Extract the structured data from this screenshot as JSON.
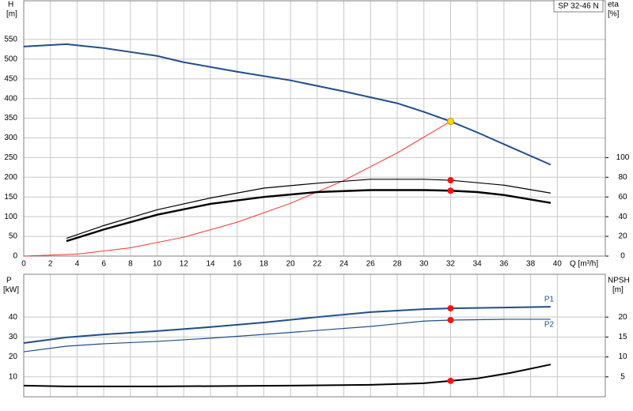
{
  "chart_data": [
    {
      "type": "line",
      "title": "SP 32-46 N",
      "ylabel": "H",
      "yunit": "[m]",
      "y2label": "eta",
      "y2unit": "[%]",
      "xlabel": "Q [m³/h]",
      "xlim": [
        0,
        43.6
      ],
      "xticks": [
        0,
        2,
        4,
        6,
        8,
        10,
        12,
        14,
        16,
        18,
        20,
        22,
        24,
        26,
        28,
        30,
        32,
        34,
        36,
        38,
        40
      ],
      "ylim": [
        0,
        648
      ],
      "yticks": [
        0,
        50,
        100,
        150,
        200,
        250,
        300,
        350,
        400,
        450,
        500,
        550
      ],
      "y2lim": [
        0,
        259.2
      ],
      "y2ticks": [
        0,
        20,
        40,
        60,
        80,
        100
      ],
      "grid": true,
      "xtick_labels": true,
      "series": [
        {
          "color": "#1f4e8c",
          "line_width": 2,
          "x": [
            0,
            3.2,
            6,
            10,
            12,
            16,
            20,
            24,
            28,
            30,
            32,
            34,
            36,
            39.5
          ],
          "values": [
            532,
            538,
            528,
            508,
            492,
            468,
            446,
            418,
            388,
            366,
            342,
            314,
            284,
            232
          ]
        },
        {
          "color": "#ff3030",
          "line_width": 1,
          "x": [
            0,
            4,
            8,
            12,
            16,
            20,
            24,
            28,
            32
          ],
          "values": [
            0,
            5,
            21,
            48,
            86,
            134,
            192,
            262,
            342
          ]
        },
        {
          "color": "#000000",
          "line_width": 1.2,
          "axis": "y2",
          "x": [
            3.2,
            6,
            10,
            14,
            18,
            22,
            26,
            30,
            32,
            36,
            39.5
          ],
          "values": [
            18,
            31,
            47,
            59,
            69,
            74,
            78,
            78,
            77,
            72,
            64
          ]
        },
        {
          "color": "#000000",
          "line_width": 2.4,
          "axis": "y2",
          "x": [
            3.2,
            6,
            10,
            14,
            18,
            22,
            26,
            30,
            32,
            34,
            36,
            39.5
          ],
          "values": [
            15.2,
            27,
            42,
            53,
            60,
            65,
            67,
            67,
            66.4,
            65,
            62,
            54
          ]
        }
      ],
      "duty_points": [
        {
          "x": 32,
          "y": 342,
          "color": "#ffd700"
        },
        {
          "x": 32,
          "y": 77,
          "axis": "y2",
          "color": "#ff1010"
        },
        {
          "x": 32,
          "y": 66.4,
          "axis": "y2",
          "color": "#ff1010"
        }
      ]
    },
    {
      "type": "line",
      "ylabel": "P",
      "yunit": "[kW]",
      "y2label": "NPSH",
      "y2unit": "[m]",
      "xlim": [
        0,
        43.6
      ],
      "xticks": [
        0,
        2,
        4,
        6,
        8,
        10,
        12,
        14,
        16,
        18,
        20,
        22,
        24,
        26,
        28,
        30,
        32,
        34,
        36,
        38,
        40
      ],
      "ylim": [
        0,
        61.5
      ],
      "yticks": [
        10,
        20,
        30,
        40
      ],
      "y2lim": [
        0,
        30.75
      ],
      "y2ticks": [
        5,
        10,
        15,
        20
      ],
      "grid": true,
      "xtick_labels": false,
      "series": [
        {
          "name": "P1",
          "color": "#1f4e8c",
          "line_width": 2,
          "x": [
            0,
            3.2,
            6,
            10,
            14,
            18,
            22,
            26,
            30,
            32,
            36,
            39.5
          ],
          "values": [
            27,
            29.8,
            31.3,
            33,
            35,
            37.3,
            40,
            42.5,
            44,
            44.4,
            44.8,
            45.2
          ]
        },
        {
          "name": "P2",
          "color": "#1f4e8c",
          "line_width": 1.2,
          "x": [
            0,
            3.2,
            6,
            10,
            14,
            18,
            22,
            26,
            30,
            32,
            36,
            39.5
          ],
          "values": [
            22.6,
            25.4,
            26.6,
            27.8,
            29.4,
            31.3,
            33.3,
            35.3,
            38,
            38.5,
            38.9,
            38.9
          ]
        },
        {
          "color": "#000000",
          "line_width": 2,
          "axis": "y2",
          "x": [
            0,
            3.2,
            10,
            20,
            26,
            30,
            32,
            34,
            36.5,
            39.5
          ],
          "values": [
            2.8,
            2.6,
            2.6,
            2.8,
            3.0,
            3.4,
            4.0,
            4.6,
            6.0,
            8.1
          ]
        }
      ],
      "duty_points": [
        {
          "x": 32,
          "y": 44.4,
          "color": "#ff1010"
        },
        {
          "x": 32,
          "y": 38.5,
          "color": "#ff1010"
        },
        {
          "x": 32,
          "y": 4.0,
          "axis": "y2",
          "color": "#ff1010"
        }
      ]
    }
  ]
}
